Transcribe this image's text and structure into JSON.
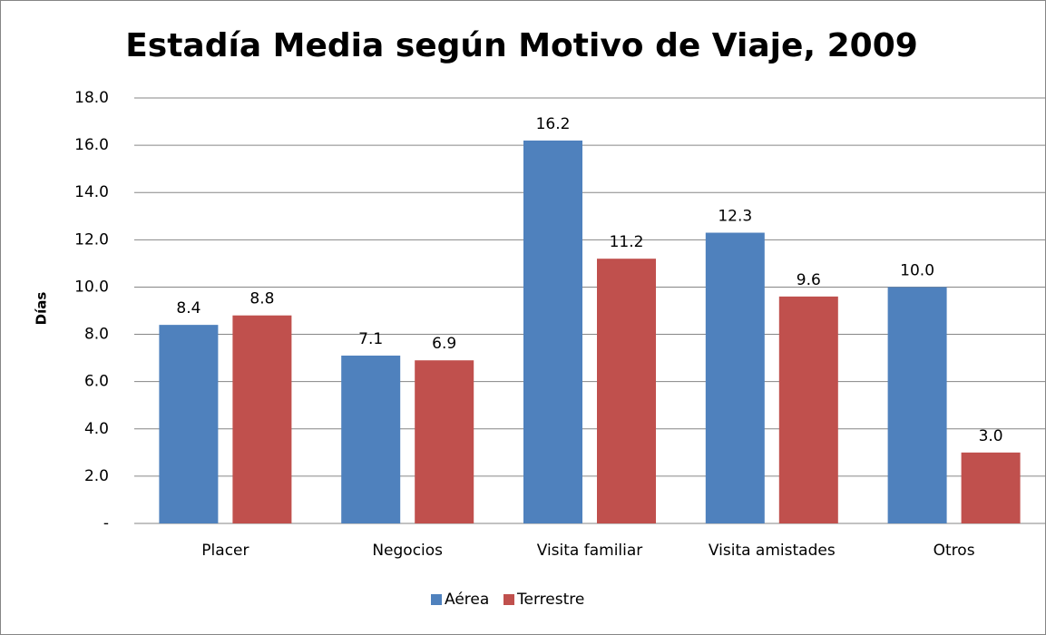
{
  "chart_data": {
    "type": "bar",
    "title": "Estadía Media según Motivo de Viaje, 2009",
    "y_label": "Días",
    "categories": [
      "Placer",
      "Negocios",
      "Visita familiar",
      "Visita amistades",
      "Otros"
    ],
    "series": [
      {
        "name": "Aérea",
        "color": "#4f81bd",
        "values": [
          8.4,
          7.1,
          16.2,
          12.3,
          10.0
        ],
        "value_labels": [
          "8.4",
          "7.1",
          "16.2",
          "12.3",
          "10.0"
        ]
      },
      {
        "name": "Terrestre",
        "color": "#c0504d",
        "values": [
          8.8,
          6.9,
          11.2,
          9.6,
          3.0
        ],
        "value_labels": [
          "8.8",
          "6.9",
          "11.2",
          "9.6",
          "3.0"
        ]
      }
    ],
    "ylim": [
      0,
      18
    ],
    "yticks": [
      {
        "value": 0,
        "label": "-"
      },
      {
        "value": 2,
        "label": "2.0"
      },
      {
        "value": 4,
        "label": "4.0"
      },
      {
        "value": 6,
        "label": "6.0"
      },
      {
        "value": 8,
        "label": "8.0"
      },
      {
        "value": 10,
        "label": "10.0"
      },
      {
        "value": 12,
        "label": "12.0"
      },
      {
        "value": 14,
        "label": "14.0"
      },
      {
        "value": 16,
        "label": "16.0"
      },
      {
        "value": 18,
        "label": "18.0"
      }
    ],
    "grid": true,
    "legend": "bottom"
  }
}
